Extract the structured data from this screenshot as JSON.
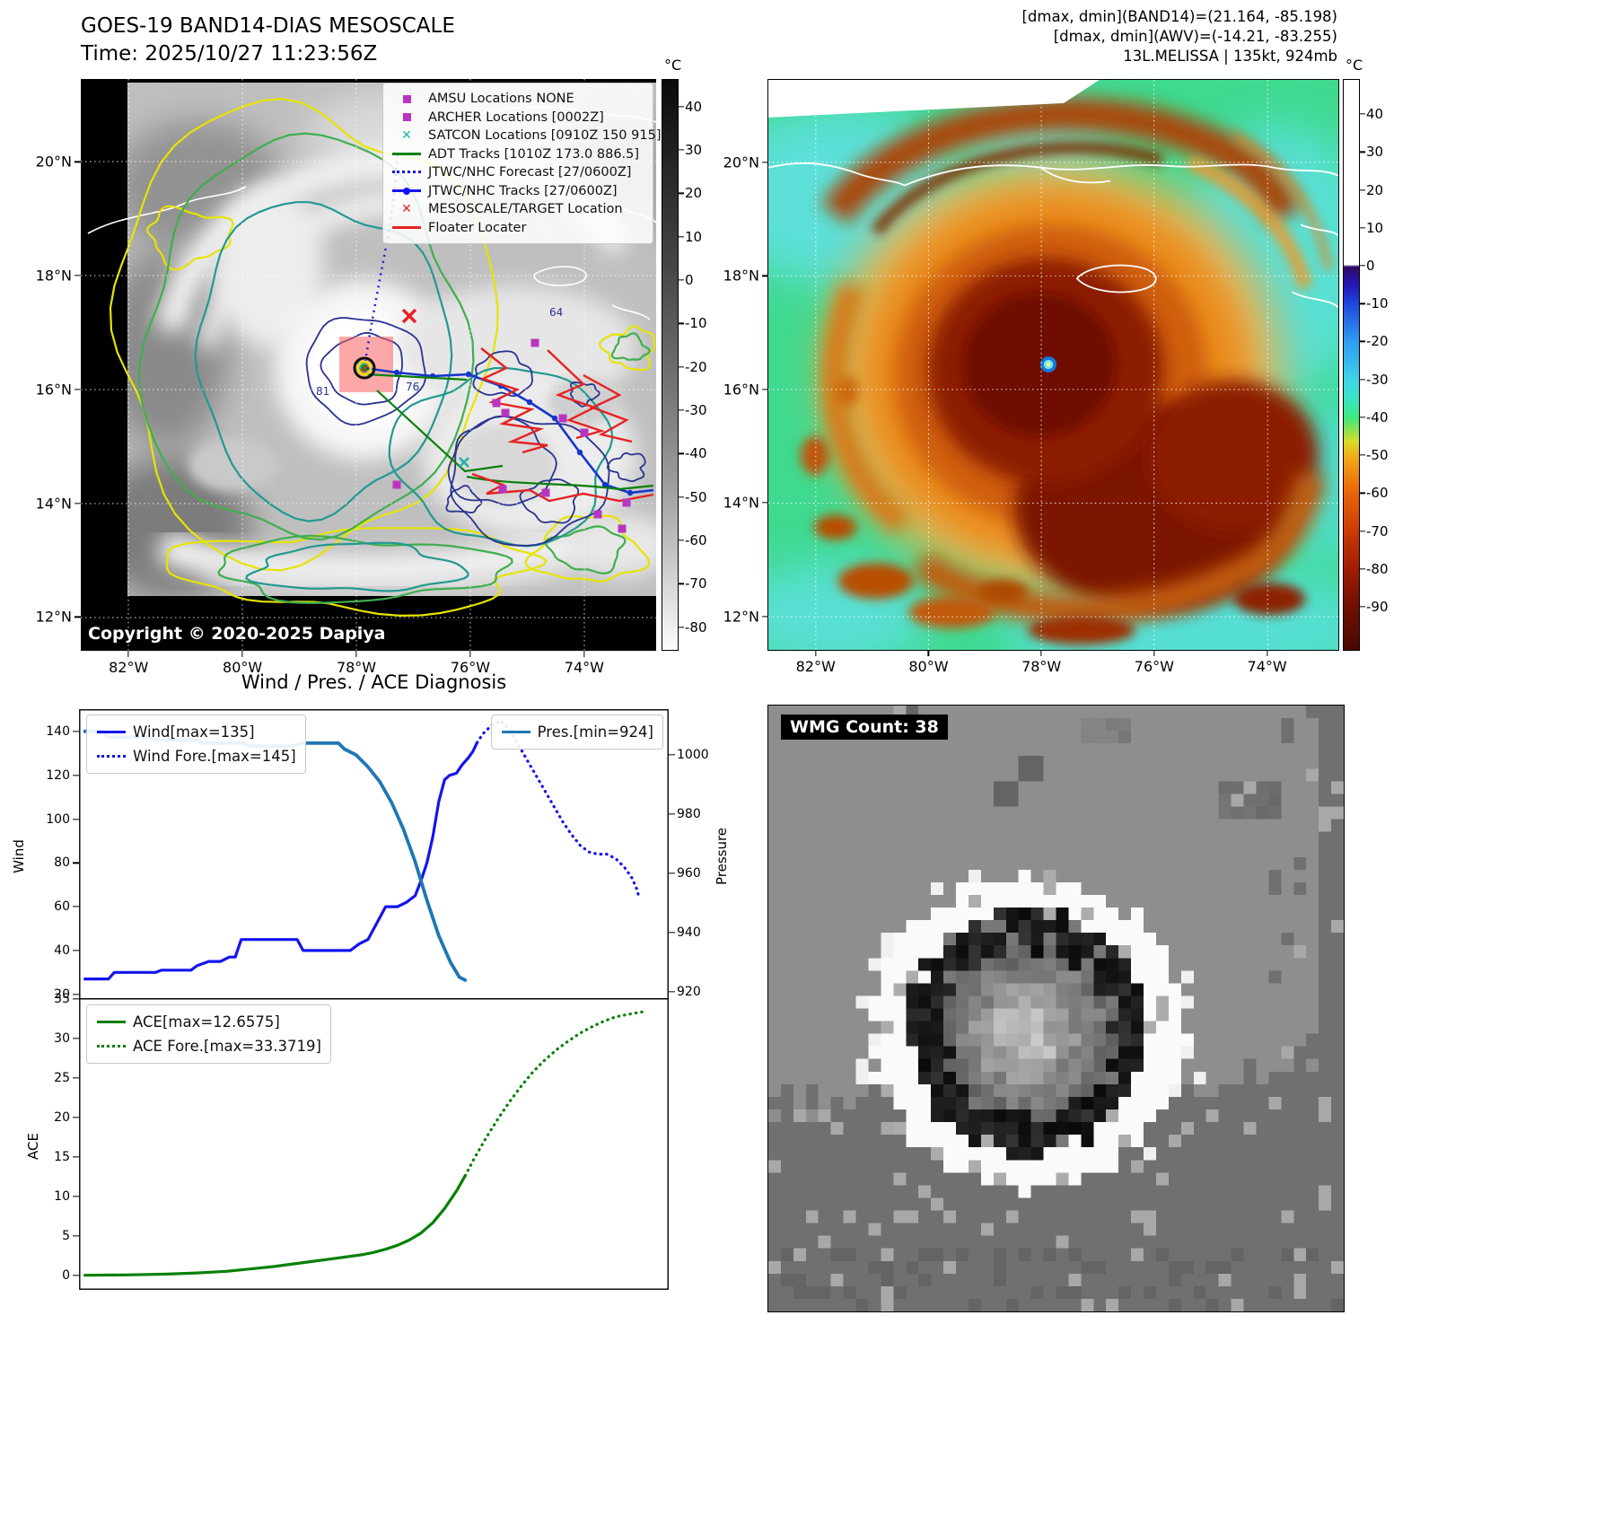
{
  "panel_band14": {
    "title": "GOES-19 BAND14-DIAS MESOSCALE",
    "time": "Time: 2025/10/27 11:23:56Z",
    "copyright": "Copyright © 2020-2025 Dapiya",
    "colorbar_unit": "°C",
    "colorbar_ticks": [
      "40",
      "30",
      "20",
      "10",
      "0",
      "-10",
      "-20",
      "-30",
      "-40",
      "-50",
      "-60",
      "-70",
      "-80"
    ],
    "lat_ticks": [
      "20°N",
      "18°N",
      "16°N",
      "14°N",
      "12°N"
    ],
    "lon_ticks": [
      "82°W",
      "80°W",
      "78°W",
      "76°W",
      "74°W"
    ],
    "contour_labels": [
      "64",
      "81",
      "76"
    ],
    "legend": [
      {
        "label": "AMSU Locations NONE",
        "marker": "magenta-square"
      },
      {
        "label": "ARCHER Locations [0002Z]",
        "marker": "magenta-square"
      },
      {
        "label": "SATCON Locations [0910Z 150 915]",
        "marker": "teal-x"
      },
      {
        "label": "ADT Tracks [1010Z 173.0 886.5]",
        "marker": "green-line"
      },
      {
        "label": "JTWC/NHC Forecast [27/0600Z]",
        "marker": "blue-dotted"
      },
      {
        "label": "JTWC/NHC Tracks [27/0600Z]",
        "marker": "blue-line-dot"
      },
      {
        "label": "MESOSCALE/TARGET Location",
        "marker": "red-x"
      },
      {
        "label": "Floater Locater",
        "marker": "red-line"
      }
    ]
  },
  "panel_awv": {
    "header_lines": [
      "[dmax, dmin](BAND14)=(21.164, -85.198)",
      "[dmax, dmin](AWV)=(-14.21, -83.255)",
      "13L.MELISSA | 135kt, 924mb"
    ],
    "colorbar_unit": "°C",
    "colorbar_ticks": [
      "40",
      "30",
      "20",
      "10",
      "0",
      "-10",
      "-20",
      "-30",
      "-40",
      "-50",
      "-60",
      "-70",
      "-80",
      "-90"
    ],
    "lat_ticks": [
      "20°N",
      "18°N",
      "16°N",
      "14°N",
      "12°N"
    ],
    "lon_ticks": [
      "82°W",
      "80°W",
      "78°W",
      "76°W",
      "74°W"
    ]
  },
  "diagnosis": {
    "title": "Wind / Pres. / ACE Diagnosis",
    "wind_axis_label": "Wind",
    "pressure_axis_label": "Pressure",
    "ace_axis_label": "ACE",
    "wind_ticks": [
      140,
      120,
      100,
      80,
      60,
      40,
      20
    ],
    "pressure_ticks": [
      1000,
      980,
      960,
      940,
      920
    ],
    "ace_ticks": [
      35,
      30,
      25,
      20,
      15,
      10,
      5,
      0
    ]
  },
  "wmg": {
    "label": "WMG Count: 38"
  },
  "chart_data": [
    {
      "type": "line",
      "subplot": "wind_pressure",
      "title": "Wind / Pres. / ACE Diagnosis",
      "ylabel_left": "Wind",
      "ylabel_right": "Pressure",
      "ylim_left": [
        18,
        150
      ],
      "ylim_right": [
        918,
        1015
      ],
      "x_note": "relative time, no x tick labels shown",
      "series": [
        {
          "name": "Wind[max=135]",
          "style": "solid",
          "color": "#1414f0",
          "axis": "left",
          "points": [
            [
              1,
              27
            ],
            [
              5,
              27
            ],
            [
              6,
              30
            ],
            [
              13,
              30
            ],
            [
              14,
              31
            ],
            [
              19,
              31
            ],
            [
              20,
              33
            ],
            [
              22,
              35
            ],
            [
              24,
              35
            ],
            [
              25.5,
              37
            ],
            [
              26.5,
              37
            ],
            [
              27.5,
              45
            ],
            [
              37,
              45
            ],
            [
              38,
              40
            ],
            [
              46,
              40
            ],
            [
              47.5,
              43
            ],
            [
              49,
              45
            ],
            [
              50,
              50
            ],
            [
              51,
              55
            ],
            [
              52,
              60
            ],
            [
              54,
              60
            ],
            [
              55.5,
              62
            ],
            [
              57,
              65
            ],
            [
              58,
              72
            ],
            [
              59,
              80
            ],
            [
              60,
              92
            ],
            [
              61,
              108
            ],
            [
              62,
              118
            ],
            [
              62.8,
              120
            ],
            [
              64,
              121
            ],
            [
              65,
              125
            ],
            [
              66,
              128
            ],
            [
              66.8,
              131
            ],
            [
              67.5,
              135
            ]
          ]
        },
        {
          "name": "Wind Fore.[max=145]",
          "style": "dotted",
          "color": "#1414f0",
          "axis": "left",
          "points": [
            [
              67.5,
              135
            ],
            [
              68.5,
              139
            ],
            [
              70,
              143
            ],
            [
              71.5,
              145
            ],
            [
              73,
              141
            ],
            [
              74.5,
              134
            ],
            [
              76,
              127
            ],
            [
              77.5,
              120
            ],
            [
              79,
              113
            ],
            [
              80.5,
              106
            ],
            [
              82,
              99
            ],
            [
              83.5,
              93
            ],
            [
              85,
              88
            ],
            [
              86.5,
              85
            ],
            [
              88,
              84
            ],
            [
              89.5,
              84
            ],
            [
              91,
              82
            ],
            [
              92.5,
              78
            ],
            [
              93.8,
              73
            ],
            [
              94.6,
              68
            ],
            [
              95,
              64
            ]
          ]
        },
        {
          "name": "Pres.[min=924]",
          "style": "solid",
          "color": "#1f77b4",
          "axis": "right",
          "points": [
            [
              1,
              1008
            ],
            [
              4,
              1008
            ],
            [
              5,
              1006
            ],
            [
              12,
              1006
            ],
            [
              13,
              1005
            ],
            [
              20,
              1005
            ],
            [
              21,
              1004
            ],
            [
              28,
              1004
            ],
            [
              29,
              1003
            ],
            [
              36,
              1003
            ],
            [
              38,
              1004
            ],
            [
              44,
              1004
            ],
            [
              45,
              1002
            ],
            [
              47,
              1000
            ],
            [
              49,
              996
            ],
            [
              51,
              991
            ],
            [
              53,
              984
            ],
            [
              55,
              975
            ],
            [
              57,
              964
            ],
            [
              59,
              951
            ],
            [
              61,
              939
            ],
            [
              63,
              930
            ],
            [
              64.5,
              925
            ],
            [
              65.5,
              924
            ]
          ]
        }
      ]
    },
    {
      "type": "line",
      "subplot": "ace",
      "ylabel": "ACE",
      "ylim": [
        -1.8,
        35
      ],
      "series": [
        {
          "name": "ACE[max=12.6575]",
          "style": "solid",
          "color": "#078007",
          "points": [
            [
              1,
              0.05
            ],
            [
              8,
              0.1
            ],
            [
              15,
              0.2
            ],
            [
              20,
              0.35
            ],
            [
              25,
              0.55
            ],
            [
              29,
              0.85
            ],
            [
              33,
              1.15
            ],
            [
              37,
              1.55
            ],
            [
              41,
              1.95
            ],
            [
              45,
              2.35
            ],
            [
              48,
              2.65
            ],
            [
              50,
              2.95
            ],
            [
              52,
              3.35
            ],
            [
              54,
              3.85
            ],
            [
              56,
              4.5
            ],
            [
              58,
              5.4
            ],
            [
              60,
              6.7
            ],
            [
              62,
              8.5
            ],
            [
              64,
              10.7
            ],
            [
              65.5,
              12.6575
            ]
          ]
        },
        {
          "name": "ACE Fore.[max=33.3719]",
          "style": "dotted",
          "color": "#078007",
          "points": [
            [
              65.5,
              12.6575
            ],
            [
              67,
              14.8
            ],
            [
              69,
              17.4
            ],
            [
              71,
              19.8
            ],
            [
              73,
              22
            ],
            [
              75,
              24
            ],
            [
              77,
              25.8
            ],
            [
              79,
              27.3
            ],
            [
              81,
              28.6
            ],
            [
              83,
              29.7
            ],
            [
              85,
              30.7
            ],
            [
              87,
              31.5
            ],
            [
              89,
              32.2
            ],
            [
              91,
              32.75
            ],
            [
              93,
              33.05
            ],
            [
              94.5,
              33.25
            ],
            [
              95.5,
              33.3719
            ]
          ]
        }
      ]
    }
  ]
}
